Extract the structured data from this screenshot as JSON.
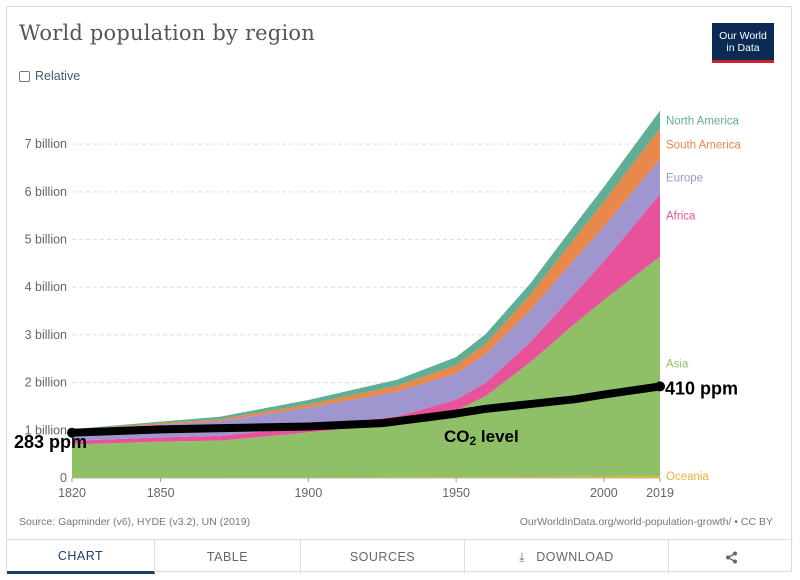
{
  "header": {
    "title": "World population by region",
    "logo_line1": "Our World",
    "logo_line2": "in Data"
  },
  "controls": {
    "relative_label": "Relative"
  },
  "chart_data": {
    "type": "area",
    "title": "World population by region",
    "ylabel": "",
    "xlabel": "",
    "x": [
      1820,
      1850,
      1870,
      1900,
      1930,
      1950,
      1960,
      1975,
      1990,
      2000,
      2019
    ],
    "xlim": [
      1820,
      2019
    ],
    "ylim": [
      0,
      7.7
    ],
    "x_ticks": [
      "1820",
      "1850",
      "1900",
      "1950",
      "2000",
      "2019"
    ],
    "x_tick_values": [
      1820,
      1850,
      1900,
      1950,
      2000,
      2019
    ],
    "y_ticks": [
      "0",
      "1 billion",
      "2 billion",
      "3 billion",
      "4 billion",
      "5 billion",
      "6 billion",
      "7 billion"
    ],
    "y_tick_values": [
      0,
      1,
      2,
      3,
      4,
      5,
      6,
      7
    ],
    "series": [
      {
        "name": "Oceania",
        "color": "#e3b23c",
        "values": [
          0.002,
          0.002,
          0.003,
          0.006,
          0.01,
          0.013,
          0.016,
          0.021,
          0.027,
          0.031,
          0.042
        ]
      },
      {
        "name": "Asia",
        "color": "#8fc067",
        "values": [
          0.7,
          0.76,
          0.78,
          0.95,
          1.12,
          1.4,
          1.7,
          2.4,
          3.2,
          3.7,
          4.6
        ]
      },
      {
        "name": "Africa",
        "color": "#e8529a",
        "values": [
          0.08,
          0.09,
          0.1,
          0.12,
          0.16,
          0.23,
          0.28,
          0.42,
          0.63,
          0.81,
          1.31
        ]
      },
      {
        "name": "Europe",
        "color": "#9f96cf",
        "values": [
          0.21,
          0.27,
          0.31,
          0.4,
          0.52,
          0.55,
          0.6,
          0.67,
          0.72,
          0.73,
          0.74
        ]
      },
      {
        "name": "South America",
        "color": "#e8884a",
        "values": [
          0.02,
          0.03,
          0.04,
          0.07,
          0.12,
          0.17,
          0.22,
          0.32,
          0.44,
          0.52,
          0.64
        ]
      },
      {
        "name": "North America",
        "color": "#5fae95",
        "values": [
          0.01,
          0.03,
          0.05,
          0.09,
          0.13,
          0.17,
          0.2,
          0.24,
          0.28,
          0.31,
          0.37
        ]
      }
    ],
    "overlay": {
      "name": "CO2 level",
      "label": "CO",
      "label_sub": "2",
      "label_suffix": " level",
      "start_label": "283 ppm",
      "end_label": "410 ppm",
      "color": "#000000",
      "x": [
        1820,
        1850,
        1900,
        1925,
        1950,
        1960,
        1975,
        1990,
        2000,
        2019
      ],
      "y": [
        0.95,
        1.02,
        1.08,
        1.15,
        1.35,
        1.45,
        1.55,
        1.65,
        1.75,
        1.92
      ]
    }
  },
  "footer": {
    "source": "Source: Gapminder (v6), HYDE (v3.2), UN (2019)",
    "link": "OurWorldInData.org/world-population-growth/ • CC BY"
  },
  "tabs": {
    "chart": "CHART",
    "table": "TABLE",
    "sources": "SOURCES",
    "download": "DOWNLOAD",
    "share_icon": "share-icon",
    "download_icon": "download-icon"
  }
}
